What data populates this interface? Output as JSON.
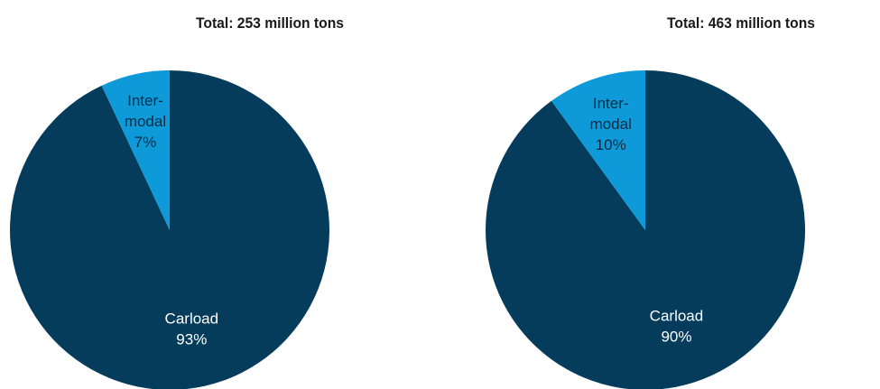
{
  "colors": {
    "carload": "#053c5c",
    "intermodal": "#0e9ad8",
    "label_dark_bg": "#ffffff",
    "label_light_bg": "#0a2b40"
  },
  "chart_data": [
    {
      "type": "pie",
      "title": "Total: 253 million tons",
      "slices": [
        {
          "label": "Carload",
          "value": 93,
          "value_label": "93%",
          "color": "#053c5c"
        },
        {
          "label": "Intermodal",
          "label_lines": [
            "Inter-",
            "modal"
          ],
          "value": 7,
          "value_label": "7%",
          "color": "#0e9ad8"
        }
      ]
    },
    {
      "type": "pie",
      "title": "Total: 463 million tons",
      "slices": [
        {
          "label": "Carload",
          "value": 90,
          "value_label": "90%",
          "color": "#053c5c"
        },
        {
          "label": "Intermodal",
          "label_lines": [
            "Inter-",
            "modal"
          ],
          "value": 10,
          "value_label": "10%",
          "color": "#0e9ad8"
        }
      ]
    }
  ]
}
